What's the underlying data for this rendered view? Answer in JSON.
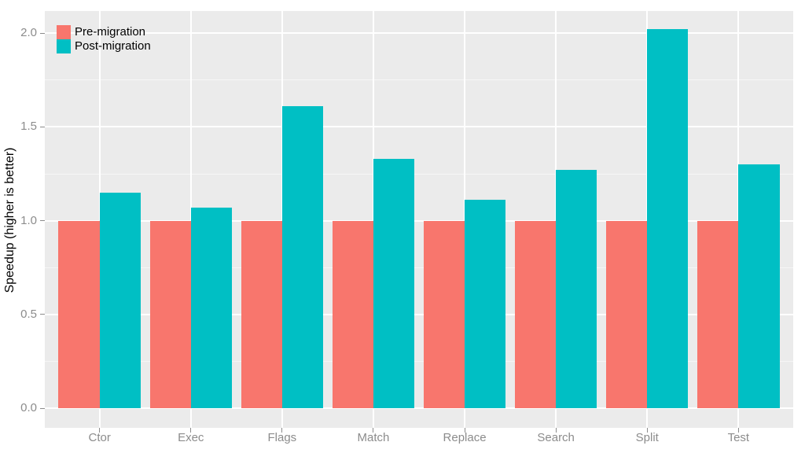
{
  "chart_data": {
    "type": "bar",
    "variant": "grouped",
    "title": "",
    "xlabel": "",
    "ylabel": "Speedup (higher is better)",
    "categories": [
      "Ctor",
      "Exec",
      "Flags",
      "Match",
      "Replace",
      "Search",
      "Split",
      "Test"
    ],
    "series": [
      {
        "name": "Pre-migration",
        "color": "#F8766D",
        "values": [
          1.0,
          1.0,
          1.0,
          1.0,
          1.0,
          1.0,
          1.0,
          1.0
        ]
      },
      {
        "name": "Post-migration",
        "color": "#00BFC4",
        "values": [
          1.15,
          1.07,
          1.61,
          1.33,
          1.11,
          1.27,
          2.02,
          1.3
        ]
      }
    ],
    "yticks": [
      {
        "value": 0.0,
        "label": "0.0"
      },
      {
        "value": 0.5,
        "label": "0.5"
      },
      {
        "value": 1.0,
        "label": "1.0"
      },
      {
        "value": 1.5,
        "label": "1.5"
      },
      {
        "value": 2.0,
        "label": "2.0"
      }
    ],
    "yticks_minor": [
      0.25,
      0.75,
      1.25,
      1.75
    ],
    "ylim": [
      -0.104,
      2.118
    ],
    "grid": true,
    "legend_position": "top-left",
    "colors": {
      "panel_bg": "#EBEBEB",
      "grid_major": "#FFFFFF",
      "grid_minor": "rgba(255,255,255,0.55)",
      "tick_mark": "#8C8C8C",
      "tick_label": "#8C8C8C",
      "axis_title": "#000000",
      "figure_bg": "#FFFFFF"
    }
  }
}
